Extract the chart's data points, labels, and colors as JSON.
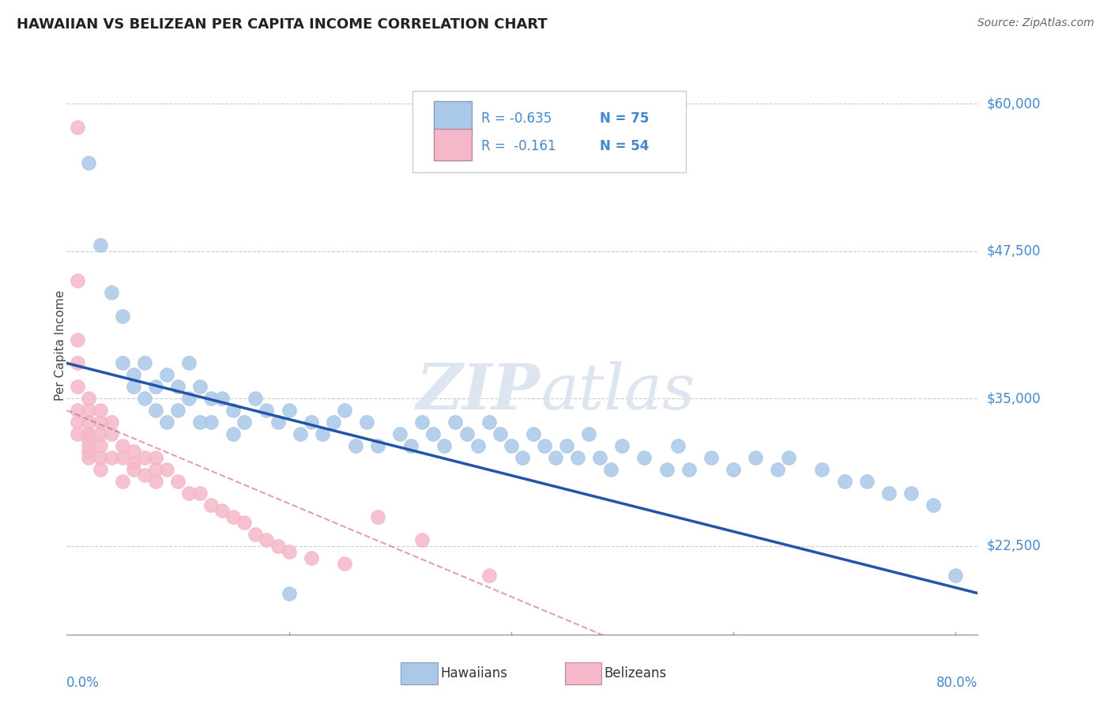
{
  "title": "HAWAIIAN VS BELIZEAN PER CAPITA INCOME CORRELATION CHART",
  "source": "Source: ZipAtlas.com",
  "ylabel": "Per Capita Income",
  "yticks": [
    22500,
    35000,
    47500,
    60000
  ],
  "ytick_labels": [
    "$22,500",
    "$35,000",
    "$47,500",
    "$60,000"
  ],
  "ymin": 15000,
  "ymax": 64000,
  "xmin": 0.0,
  "xmax": 0.82,
  "hawaiian_R": -0.635,
  "hawaiian_N": 75,
  "belizean_R": -0.161,
  "belizean_N": 54,
  "hawaiian_color": "#aac8e8",
  "belizean_color": "#f5b8c8",
  "hawaiian_line_color": "#2255aa",
  "belizean_line_color": "#d06080",
  "background_color": "#ffffff",
  "title_fontsize": 13,
  "watermark_color": "#dde5f0",
  "legend_label1": "Hawaiians",
  "legend_label2": "Belizeans",
  "hawaiian_x": [
    0.02,
    0.03,
    0.04,
    0.05,
    0.05,
    0.06,
    0.06,
    0.07,
    0.07,
    0.08,
    0.08,
    0.09,
    0.09,
    0.1,
    0.1,
    0.11,
    0.11,
    0.12,
    0.12,
    0.13,
    0.13,
    0.14,
    0.15,
    0.15,
    0.16,
    0.17,
    0.18,
    0.19,
    0.2,
    0.21,
    0.22,
    0.23,
    0.24,
    0.25,
    0.26,
    0.27,
    0.28,
    0.3,
    0.31,
    0.32,
    0.33,
    0.34,
    0.35,
    0.36,
    0.37,
    0.38,
    0.39,
    0.4,
    0.41,
    0.42,
    0.43,
    0.44,
    0.45,
    0.46,
    0.47,
    0.48,
    0.49,
    0.5,
    0.52,
    0.54,
    0.55,
    0.56,
    0.58,
    0.6,
    0.62,
    0.64,
    0.65,
    0.68,
    0.7,
    0.72,
    0.74,
    0.76,
    0.78,
    0.8,
    0.2
  ],
  "hawaiian_y": [
    55000,
    48000,
    44000,
    38000,
    42000,
    36000,
    37000,
    38000,
    35000,
    36000,
    34000,
    37000,
    33000,
    36000,
    34000,
    38000,
    35000,
    36000,
    33000,
    35000,
    33000,
    35000,
    34000,
    32000,
    33000,
    35000,
    34000,
    33000,
    34000,
    32000,
    33000,
    32000,
    33000,
    34000,
    31000,
    33000,
    31000,
    32000,
    31000,
    33000,
    32000,
    31000,
    33000,
    32000,
    31000,
    33000,
    32000,
    31000,
    30000,
    32000,
    31000,
    30000,
    31000,
    30000,
    32000,
    30000,
    29000,
    31000,
    30000,
    29000,
    31000,
    29000,
    30000,
    29000,
    30000,
    29000,
    30000,
    29000,
    28000,
    28000,
    27000,
    27000,
    26000,
    20000,
    18500
  ],
  "belizean_x": [
    0.01,
    0.01,
    0.01,
    0.01,
    0.01,
    0.01,
    0.01,
    0.01,
    0.02,
    0.02,
    0.02,
    0.02,
    0.02,
    0.02,
    0.02,
    0.02,
    0.02,
    0.03,
    0.03,
    0.03,
    0.03,
    0.03,
    0.03,
    0.04,
    0.04,
    0.04,
    0.05,
    0.05,
    0.05,
    0.06,
    0.06,
    0.06,
    0.07,
    0.07,
    0.08,
    0.08,
    0.08,
    0.09,
    0.1,
    0.11,
    0.12,
    0.13,
    0.14,
    0.15,
    0.16,
    0.17,
    0.18,
    0.19,
    0.2,
    0.22,
    0.25,
    0.28,
    0.32,
    0.38
  ],
  "belizean_y": [
    58000,
    45000,
    40000,
    38000,
    36000,
    34000,
    33000,
    32000,
    35000,
    34000,
    33000,
    32000,
    31500,
    30500,
    32000,
    31000,
    30000,
    34000,
    33000,
    32000,
    31000,
    30000,
    29000,
    33000,
    32000,
    30000,
    31000,
    30000,
    28000,
    30500,
    29500,
    29000,
    30000,
    28500,
    30000,
    29000,
    28000,
    29000,
    28000,
    27000,
    27000,
    26000,
    25500,
    25000,
    24500,
    23500,
    23000,
    22500,
    22000,
    21500,
    21000,
    25000,
    23000,
    20000
  ]
}
